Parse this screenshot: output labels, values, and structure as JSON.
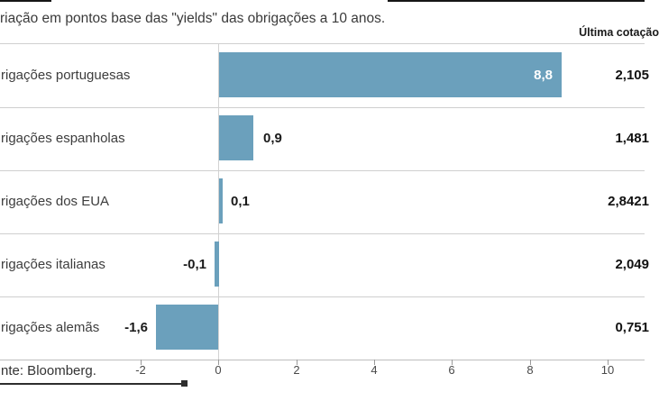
{
  "header": {
    "title": "riação em pontos base das \"yields\" das obrigações a 10 anos.",
    "quote_column": "Última cotação"
  },
  "rows": [
    {
      "label": "rigações portuguesas",
      "value_label": "8,8",
      "quote": "2,105"
    },
    {
      "label": "rigações espanholas",
      "value_label": "0,9",
      "quote": "1,481"
    },
    {
      "label": "rigações dos EUA",
      "value_label": "0,1",
      "quote": "2,8421"
    },
    {
      "label": "rigações italianas",
      "value_label": "-0,1",
      "quote": "2,049"
    },
    {
      "label": "rigações alemãs",
      "value_label": "-1,6",
      "quote": "0,751"
    }
  ],
  "axis": {
    "ticks": [
      "-2",
      "0",
      "2",
      "4",
      "6",
      "8",
      "10"
    ]
  },
  "source": "nte: Bloomberg.",
  "chart_data": {
    "type": "bar",
    "orientation": "horizontal",
    "title": "riação em pontos base das \"yields\" das obrigações a 10 anos.",
    "value_column_header": "Última cotação",
    "categories": [
      "rigações portuguesas",
      "rigações espanholas",
      "rigações dos EUA",
      "rigações italianas",
      "rigações alemãs"
    ],
    "values": [
      8.8,
      0.9,
      0.1,
      -0.1,
      -1.6
    ],
    "value_labels": [
      "8,8",
      "0,9",
      "0,1",
      "-0,1",
      "-1,6"
    ],
    "last_quotes": [
      "2,105",
      "1,481",
      "2,8421",
      "2,049",
      "0,751"
    ],
    "x_ticks": [
      -2,
      0,
      2,
      4,
      6,
      8,
      10
    ],
    "xlim": [
      -5.6,
      10.9
    ],
    "xlabel": "",
    "ylabel": "",
    "legend": "none",
    "grid": "horizontal row separators + zero line",
    "bar_color": "#6BA0BC",
    "source": "nte: Bloomberg."
  }
}
